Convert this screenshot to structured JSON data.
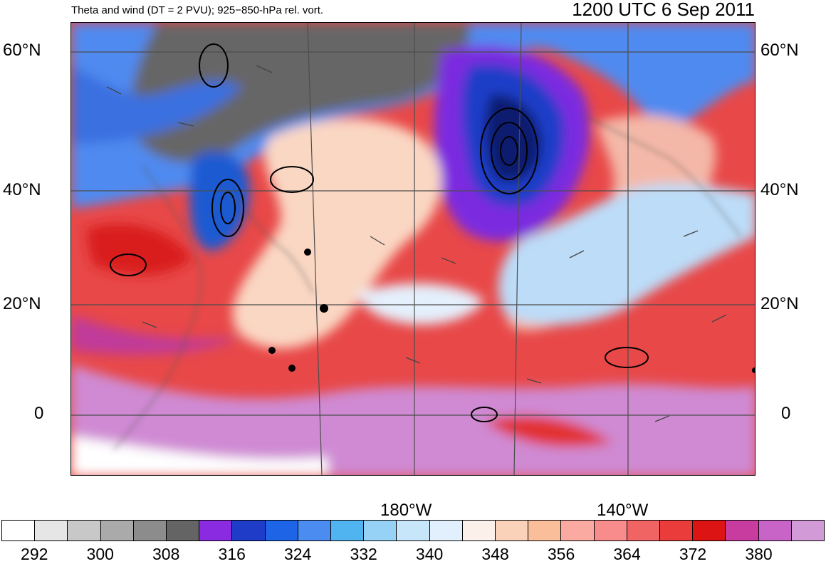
{
  "header": {
    "left_title": "Theta and wind (DT = 2 PVU); 925−850-hPa rel. vort.",
    "right_title": "1200 UTC 6 Sep 2011"
  },
  "axes": {
    "lat_labels": [
      "60°N",
      "40°N",
      "20°N",
      "0"
    ],
    "lon_labels": [
      "180°W",
      "140°W"
    ]
  },
  "colorbar": {
    "labels": [
      "292",
      "300",
      "308",
      "316",
      "324",
      "332",
      "340",
      "348",
      "356",
      "364",
      "372",
      "380"
    ],
    "colors": [
      "#ffffff",
      "#e6e6e6",
      "#c8c8c8",
      "#aaaaaa",
      "#8c8c8c",
      "#646464",
      "#8a2be2",
      "#1e3cc8",
      "#1e64e6",
      "#4b8cf0",
      "#50b4f0",
      "#96d2f5",
      "#c8e6fa",
      "#e1f0fc",
      "#fcf0ea",
      "#fad2b9",
      "#fabe9b",
      "#faaaa0",
      "#f88c8c",
      "#f06464",
      "#eb3c3c",
      "#dc1414",
      "#c83ca0",
      "#c864c8",
      "#d29bd7"
    ]
  },
  "map": {
    "theme": "theta-on-dynamic-tropopause",
    "cyclone_symbol": "upper-low-icon"
  }
}
